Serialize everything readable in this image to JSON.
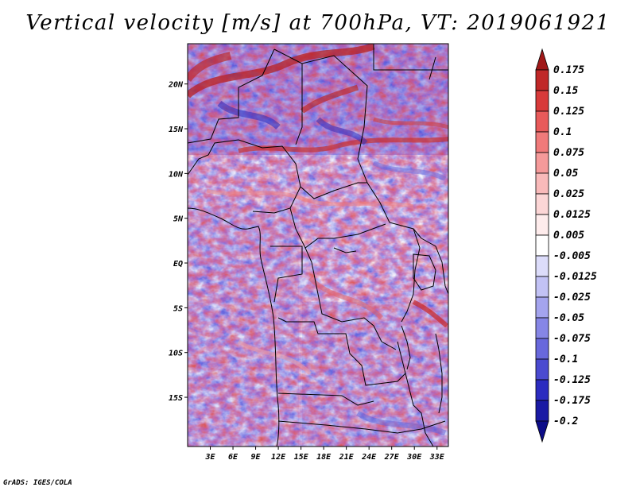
{
  "title": "Vertical velocity [m/s] at 700hPa, VT: 2019061921",
  "credit": "GrADS: IGES/COLA",
  "chart_data": {
    "type": "heatmap",
    "title": "Vertical velocity [m/s] at 700hPa, VT: 2019061921",
    "variable": "Vertical velocity",
    "units": "m/s",
    "level": "700hPa",
    "valid_time": "2019061921",
    "x_axis": {
      "range": [
        0,
        34.5
      ],
      "ticks": [
        3,
        6,
        9,
        12,
        15,
        18,
        21,
        24,
        27,
        30,
        33
      ],
      "tick_labels": [
        "3E",
        "6E",
        "9E",
        "12E",
        "15E",
        "18E",
        "21E",
        "24E",
        "27E",
        "30E",
        "33E"
      ]
    },
    "y_axis": {
      "range": [
        -20.5,
        24.5
      ],
      "ticks": [
        20,
        15,
        10,
        5,
        0,
        -5,
        -10,
        -15
      ],
      "tick_labels": [
        "20N",
        "15N",
        "10N",
        "5N",
        "EQ",
        "5S",
        "10S",
        "15S"
      ]
    },
    "colorbar": {
      "levels": [
        "0.175",
        "0.15",
        "0.125",
        "0.1",
        "0.075",
        "0.05",
        "0.025",
        "0.0125",
        "0.005",
        "-0.005",
        "-0.0125",
        "-0.025",
        "-0.05",
        "-0.075",
        "-0.1",
        "-0.125",
        "-0.175",
        "-0.2"
      ],
      "colors": [
        "#a01818",
        "#c02828",
        "#d83a3a",
        "#e85a5a",
        "#f07a7a",
        "#f59a9a",
        "#f9baba",
        "#fcd6d6",
        "#feecec",
        "#ffffff",
        "#dcdcfa",
        "#c2c2f5",
        "#a4a4ee",
        "#8686e6",
        "#6868dc",
        "#4a4ad0",
        "#2c2cc0",
        "#1a1aa4",
        "#0c0c88"
      ]
    }
  }
}
